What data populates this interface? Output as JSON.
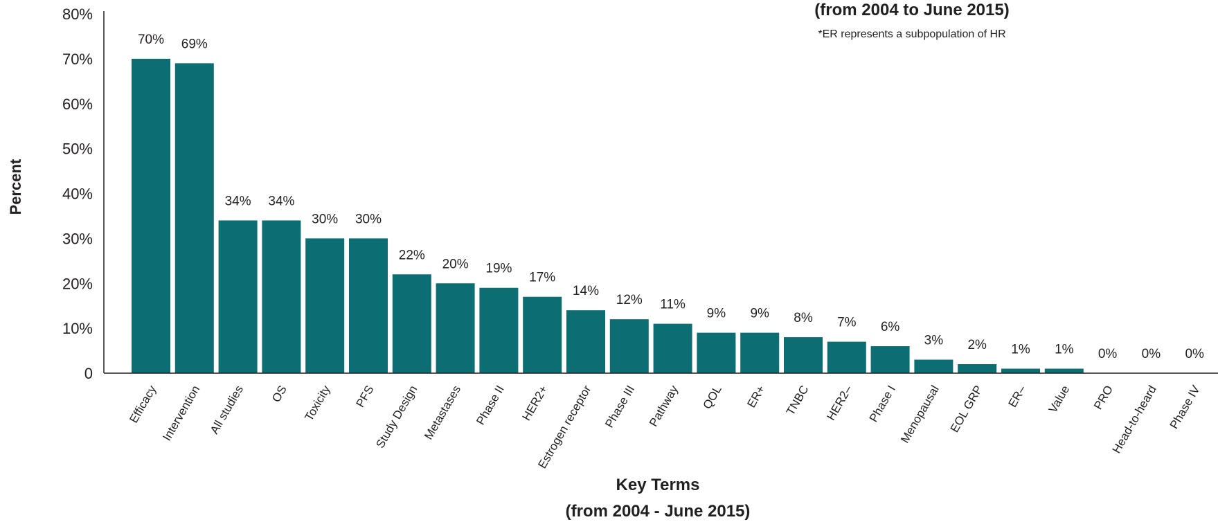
{
  "chart_data": {
    "type": "bar",
    "title": "(from 2004 to June 2015)",
    "note": "*ER represents a subpopulation of HR",
    "ylabel": "Percent",
    "xlabel": "Key Terms",
    "xlabel_sub": "(from 2004 - June 2015)",
    "ylim": [
      0,
      80
    ],
    "y_ticks": [
      "0",
      "10%",
      "20%",
      "30%",
      "40%",
      "50%",
      "60%",
      "70%",
      "80%"
    ],
    "categories": [
      "Efficacy",
      "Intervention",
      "All studies",
      "OS",
      "Toxicity",
      "PFS",
      "Study Design",
      "Metastases",
      "Phase II",
      "HER2+",
      "Estrogen receptor",
      "Phase III",
      "Pathway",
      "QOL",
      "ER+",
      "TNBC",
      "HER2–",
      "Phase I",
      "Menopausal",
      "EOL GRP",
      "ER–",
      "Value",
      "PRO",
      "Head-to-heard",
      "Phase IV"
    ],
    "values": [
      70,
      69,
      34,
      34,
      30,
      30,
      22,
      20,
      19,
      17,
      14,
      12,
      11,
      9,
      9,
      8,
      7,
      6,
      3,
      2,
      1,
      1,
      0,
      0,
      0
    ],
    "value_labels": [
      "70%",
      "69%",
      "34%",
      "34%",
      "30%",
      "30%",
      "22%",
      "20%",
      "19%",
      "17%",
      "14%",
      "12%",
      "11%",
      "9%",
      "9%",
      "8%",
      "7%",
      "6%",
      "3%",
      "2%",
      "1%",
      "1%",
      "0%",
      "0%",
      "0%"
    ],
    "bar_color": "#0c6e72",
    "grid": false,
    "legend": "none"
  }
}
